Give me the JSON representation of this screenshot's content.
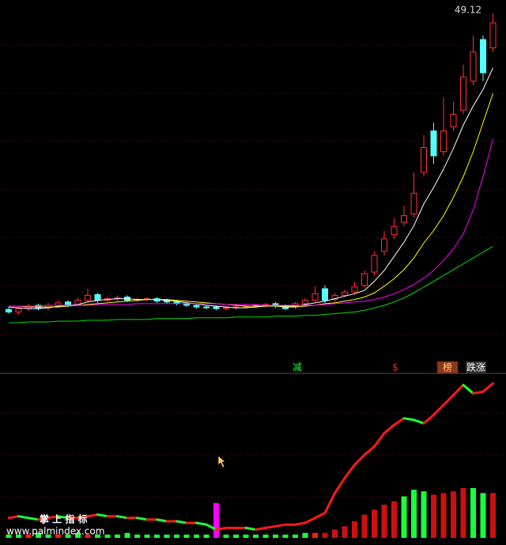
{
  "chart_data": [
    {
      "type": "candlestick",
      "open": [
        13.5,
        13.2,
        13.6,
        14.0,
        13.7,
        14.0,
        14.4,
        14.1,
        14.6,
        15.3,
        14.6,
        14.8,
        15.0,
        14.6,
        14.7,
        14.8,
        14.6,
        14.4,
        14.2,
        14.0,
        13.8,
        13.8,
        13.6,
        13.7,
        13.8,
        13.9,
        14.0,
        14.2,
        13.9,
        13.8,
        14.2,
        14.6,
        16.0,
        14.7,
        15.2,
        15.6,
        16.4,
        18.0,
        20.5,
        22.5,
        24.0,
        25.0,
        30.0,
        35.0,
        32.5,
        35.5,
        37.5,
        41.0,
        46.0,
        45.0
      ],
      "high": [
        13.8,
        13.9,
        14.2,
        14.2,
        14.3,
        14.6,
        14.6,
        14.9,
        16.0,
        15.5,
        15.1,
        15.2,
        15.2,
        14.9,
        15.0,
        15.0,
        14.8,
        14.6,
        14.4,
        14.2,
        14.0,
        14.0,
        13.9,
        14.0,
        14.1,
        14.2,
        14.3,
        14.4,
        14.1,
        14.4,
        14.9,
        16.3,
        16.4,
        15.5,
        15.9,
        16.8,
        18.2,
        20.5,
        23.0,
        24.5,
        26.0,
        30.0,
        34.5,
        36.0,
        39.0,
        38.5,
        43.0,
        46.5,
        46.5,
        49.12
      ],
      "low": [
        13.0,
        12.9,
        13.3,
        13.4,
        13.4,
        13.8,
        13.8,
        13.9,
        14.4,
        14.3,
        14.4,
        14.5,
        14.4,
        14.4,
        14.5,
        14.3,
        14.2,
        14.0,
        13.8,
        13.6,
        13.5,
        13.4,
        13.4,
        13.5,
        13.6,
        13.7,
        13.8,
        13.7,
        13.4,
        13.5,
        14.0,
        14.4,
        14.3,
        14.4,
        15.0,
        15.3,
        16.1,
        17.6,
        20.0,
        22.0,
        23.5,
        24.6,
        29.5,
        31.0,
        32.0,
        35.0,
        37.0,
        40.5,
        41.0,
        44.5
      ],
      "close": [
        13.2,
        13.6,
        13.9,
        13.7,
        14.0,
        14.3,
        14.1,
        14.6,
        15.2,
        14.6,
        14.8,
        14.9,
        14.6,
        14.7,
        14.8,
        14.5,
        14.4,
        14.2,
        14.0,
        13.8,
        13.7,
        13.6,
        13.7,
        13.8,
        13.9,
        14.0,
        14.1,
        13.9,
        13.6,
        14.2,
        14.6,
        15.4,
        14.6,
        15.2,
        15.6,
        16.2,
        17.8,
        20.0,
        22.0,
        23.5,
        24.8,
        27.5,
        33.0,
        32.0,
        35.0,
        37.0,
        41.5,
        44.5,
        42.0,
        48.0
      ],
      "up_color": "#ff3232",
      "down_color": "#54ffff",
      "series": [
        {
          "color": "#ffffff",
          "values": [
            13.8,
            13.7,
            13.6,
            13.6,
            13.7,
            13.9,
            14.0,
            14.1,
            14.4,
            14.6,
            14.7,
            14.8,
            14.8,
            14.7,
            14.7,
            14.7,
            14.6,
            14.5,
            14.3,
            14.2,
            14.0,
            13.9,
            13.8,
            13.7,
            13.7,
            13.8,
            13.9,
            13.9,
            13.9,
            13.9,
            14.1,
            14.3,
            14.5,
            14.8,
            15.1,
            15.4,
            15.8,
            16.9,
            18.2,
            19.9,
            21.6,
            23.6,
            26.2,
            28.2,
            30.4,
            32.9,
            35.7,
            38.0,
            40.0,
            42.6
          ]
        },
        {
          "color": "#ffff00",
          "values": [
            13.9,
            13.9,
            13.8,
            13.8,
            13.8,
            13.8,
            13.9,
            14.0,
            14.1,
            14.2,
            14.3,
            14.4,
            14.5,
            14.6,
            14.7,
            14.7,
            14.7,
            14.6,
            14.5,
            14.4,
            14.3,
            14.2,
            14.1,
            14.0,
            13.9,
            13.9,
            13.9,
            13.9,
            13.8,
            13.8,
            13.9,
            14.0,
            14.2,
            14.3,
            14.5,
            14.7,
            15.0,
            15.5,
            16.3,
            17.2,
            18.3,
            19.7,
            21.5,
            23.0,
            24.8,
            27.0,
            29.5,
            32.5,
            36.0,
            39.5
          ]
        },
        {
          "color": "#ff00ff",
          "values": [
            13.9,
            13.9,
            13.9,
            13.9,
            14.0,
            14.0,
            14.0,
            14.0,
            14.0,
            14.1,
            14.1,
            14.1,
            14.1,
            14.2,
            14.2,
            14.2,
            14.2,
            14.2,
            14.2,
            14.2,
            14.2,
            14.2,
            14.1,
            14.1,
            14.1,
            14.1,
            14.0,
            14.0,
            14.0,
            14.0,
            14.0,
            14.0,
            14.1,
            14.2,
            14.3,
            14.4,
            14.5,
            14.7,
            15.0,
            15.4,
            15.9,
            16.5,
            17.3,
            18.2,
            19.4,
            20.8,
            22.6,
            25.5,
            29.5,
            34.0
          ]
        },
        {
          "color": "#00e000",
          "values": [
            11.9,
            11.9,
            12.0,
            12.0,
            12.0,
            12.1,
            12.1,
            12.1,
            12.2,
            12.2,
            12.2,
            12.3,
            12.3,
            12.3,
            12.3,
            12.4,
            12.4,
            12.4,
            12.4,
            12.5,
            12.5,
            12.5,
            12.5,
            12.6,
            12.6,
            12.6,
            12.6,
            12.7,
            12.7,
            12.7,
            12.8,
            12.8,
            12.9,
            13.0,
            13.1,
            13.2,
            13.4,
            13.7,
            14.0,
            14.4,
            14.9,
            15.5,
            16.2,
            16.9,
            17.6,
            18.3,
            19.0,
            19.7,
            20.4,
            21.1
          ]
        }
      ],
      "ylim": [
        10,
        50
      ]
    },
    {
      "type": "indicator",
      "signals": [
        "减",
        "$",
        "榜",
        "跌涨"
      ],
      "watermark": {
        "brand": "掌 上 指 标",
        "site": "www.palmindex.com"
      },
      "line": {
        "rise_color": "#ff1a1a",
        "fall_color": "#1aff3a",
        "values": [
          12,
          13,
          12,
          11,
          12,
          13,
          12,
          12,
          13,
          14,
          13,
          13,
          12,
          12,
          11,
          11,
          10,
          10,
          9,
          9,
          8,
          5,
          6,
          6,
          6,
          5,
          6,
          7,
          8,
          8,
          9,
          12,
          15,
          27,
          36,
          44,
          50,
          55,
          63,
          68,
          72,
          71,
          69,
          74,
          80,
          86,
          92,
          87,
          88,
          93
        ]
      },
      "bars": {
        "values": [
          2,
          2,
          2,
          3,
          2,
          2,
          2,
          3,
          2,
          2,
          2,
          2,
          3,
          2,
          2,
          2,
          2,
          2,
          2,
          2,
          2,
          21,
          2,
          2,
          2,
          2,
          2,
          2,
          2,
          2,
          3,
          3,
          3,
          5,
          7,
          10,
          14,
          17,
          20,
          22,
          25,
          29,
          28,
          26,
          27,
          28,
          30,
          30,
          27,
          27
        ],
        "colors": [
          "#1aff3a",
          "#1aff3a",
          "#ff1a1a",
          "#1aff3a",
          "#1aff3a",
          "#ff1a1a",
          "#1aff3a",
          "#1aff3a",
          "#ff1a1a",
          "#1aff3a",
          "#1aff3a",
          "#1aff3a",
          "#1aff3a",
          "#1aff3a",
          "#1aff3a",
          "#1aff3a",
          "#1aff3a",
          "#1aff3a",
          "#1aff3a",
          "#1aff3a",
          "#1aff3a",
          "#ff00ff",
          "#1aff3a",
          "#1aff3a",
          "#1aff3a",
          "#1aff3a",
          "#1aff3a",
          "#1aff3a",
          "#1aff3a",
          "#1aff3a",
          "#1aff3a",
          "#ff1a1a",
          "#cc1010",
          "#cc1010",
          "#cc1010",
          "#cc1010",
          "#cc1010",
          "#cc1010",
          "#cc1010",
          "#cc1010",
          "#1aff3a",
          "#1aff3a",
          "#1aff3a",
          "#cc1010",
          "#cc1010",
          "#cc1010",
          "#cc1010",
          "#1aff3a",
          "#1aff3a",
          "#cc1010"
        ]
      },
      "ylim": [
        0,
        100
      ]
    }
  ]
}
